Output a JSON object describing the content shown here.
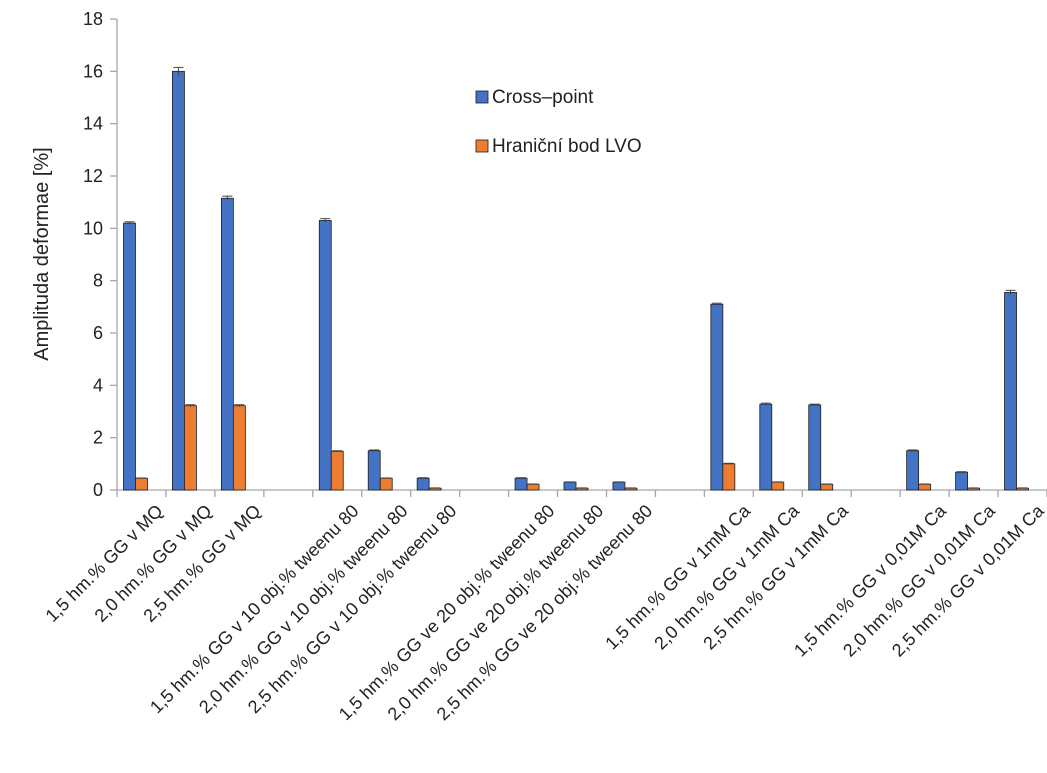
{
  "chart_data": {
    "type": "bar",
    "ylabel": "Amplituda deformae [%]",
    "xlabel": "",
    "ylim": [
      0,
      18
    ],
    "yticks": [
      0,
      2,
      4,
      6,
      8,
      10,
      12,
      14,
      16,
      18
    ],
    "grid": false,
    "legend_position": "top-right",
    "categories": [
      "1,5 hm.% GG v MQ",
      "2,0 hm.% GG v MQ",
      "2,5 hm.% GG v MQ",
      "",
      "1,5 hm.% GG v 10 obj.% tweenu 80",
      "2,0 hm.% GG v 10 obj.% tweenu 80",
      "2,5 hm.% GG v 10 obj.% tweenu 80",
      "",
      "1,5 hm.% GG ve 20 obj.% tweenu 80",
      "2,0 hm.% GG ve 20 obj.% tweenu 80",
      "2,5 hm.% GG ve 20 obj.% tweenu 80",
      "",
      "1,5 hm.% GG v 1mM Ca",
      "2,0 hm.% GG v 1mM Ca",
      "2,5 hm.% GG v 1mM Ca",
      "",
      "1,5 hm.% GG v 0,01M Ca",
      "2,0 hm.% GG v 0,01M Ca",
      "2,5 hm.% GG v 0,01M Ca"
    ],
    "series": [
      {
        "name": "Cross–point",
        "color": "#4472C4",
        "values": [
          10.2,
          16.0,
          11.15,
          null,
          10.3,
          1.5,
          0.45,
          null,
          0.45,
          0.3,
          0.3,
          null,
          7.1,
          3.28,
          3.25,
          null,
          1.5,
          0.68,
          7.55
        ],
        "errors": [
          0.05,
          0.15,
          0.08,
          null,
          0.07,
          0.03,
          0.02,
          null,
          0.02,
          0.01,
          0.01,
          null,
          0.04,
          0.04,
          0.03,
          null,
          0.03,
          0.02,
          0.08
        ]
      },
      {
        "name": "Hraniční bod LVO",
        "color": "#ED7D31",
        "values": [
          0.45,
          3.22,
          3.22,
          null,
          1.48,
          0.45,
          0.07,
          null,
          0.22,
          0.07,
          0.07,
          null,
          1.0,
          0.3,
          0.22,
          null,
          0.22,
          0.07,
          0.07
        ],
        "errors": [
          0.01,
          0.04,
          0.04,
          null,
          0.02,
          0.01,
          0.01,
          null,
          0.01,
          0.01,
          0.01,
          null,
          0.02,
          0.01,
          0.01,
          null,
          0.01,
          0.01,
          0.01
        ]
      }
    ]
  }
}
